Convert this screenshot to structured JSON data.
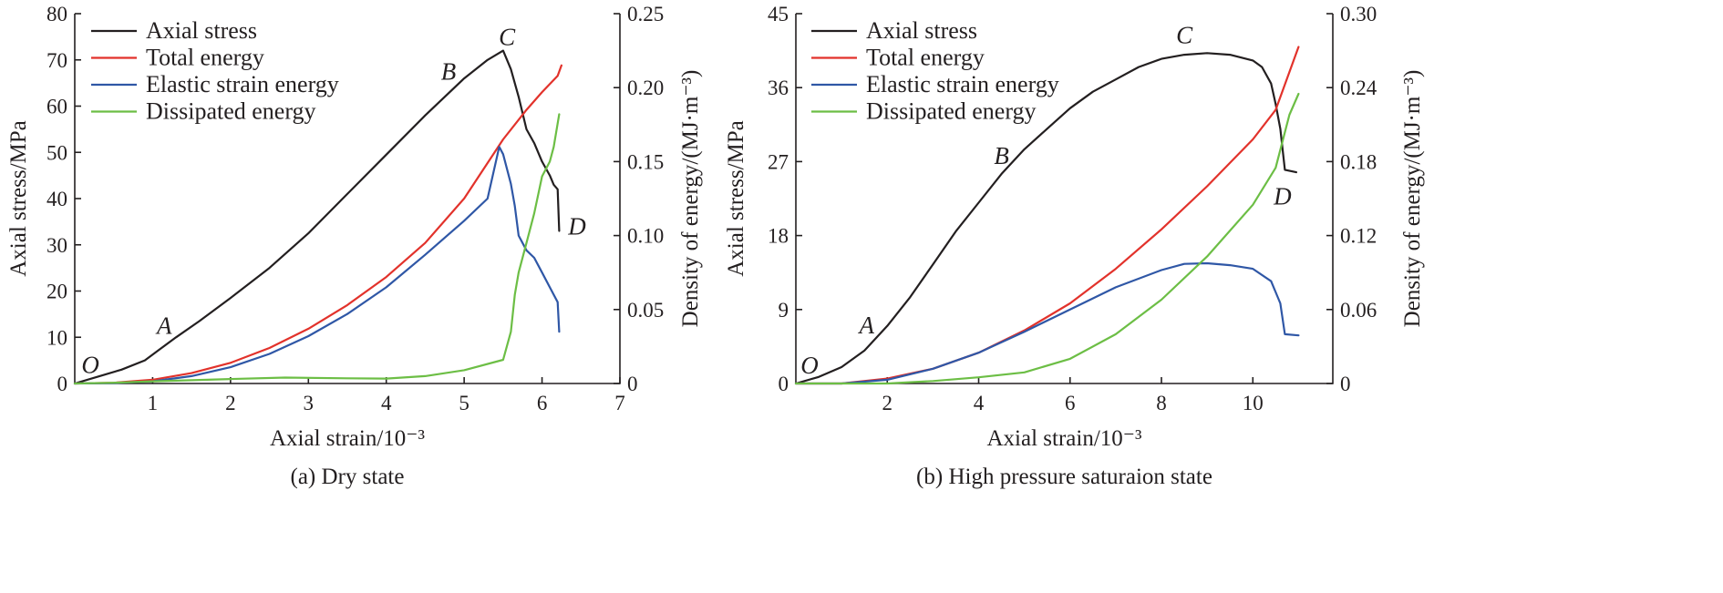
{
  "chart_data": [
    {
      "type": "line",
      "caption": "(a) Dry state",
      "xlabel": "Axial strain/10⁻³",
      "ylabel_left": "Axial stress/MPa",
      "ylabel_right": "Density of energy/(MJ·m⁻³)",
      "xlim": [
        0,
        7
      ],
      "ylim_left": [
        0,
        80
      ],
      "ylim_right": [
        0,
        0.25
      ],
      "xticks": [
        "1",
        "2",
        "3",
        "4",
        "5",
        "6",
        "7"
      ],
      "yticks_left": [
        "0",
        "10",
        "20",
        "30",
        "40",
        "50",
        "60",
        "70",
        "80"
      ],
      "yticks_right": [
        "0",
        "0.05",
        "0.10",
        "0.15",
        "0.20",
        "0.25"
      ],
      "legend": [
        "Axial stress",
        "Total energy",
        "Elastic strain energy",
        "Dissipated energy"
      ],
      "series": [
        {
          "name": "Axial stress",
          "axis": "left",
          "color": "#231f20",
          "points": [
            [
              0,
              0
            ],
            [
              0.3,
              1.5
            ],
            [
              0.6,
              3
            ],
            [
              0.9,
              5
            ],
            [
              1.1,
              7.5
            ],
            [
              1.3,
              10
            ],
            [
              1.6,
              13.5
            ],
            [
              2,
              18.5
            ],
            [
              2.5,
              25
            ],
            [
              3,
              32.5
            ],
            [
              3.5,
              41
            ],
            [
              4,
              49.5
            ],
            [
              4.5,
              58
            ],
            [
              5,
              66
            ],
            [
              5.3,
              70
            ],
            [
              5.5,
              72
            ],
            [
              5.6,
              68
            ],
            [
              5.7,
              62
            ],
            [
              5.8,
              55
            ],
            [
              5.9,
              52
            ],
            [
              6,
              48
            ],
            [
              6.1,
              45
            ],
            [
              6.15,
              43
            ],
            [
              6.2,
              42
            ],
            [
              6.22,
              33
            ]
          ]
        },
        {
          "name": "Total energy",
          "axis": "right",
          "color": "#e2322b",
          "points": [
            [
              0,
              0
            ],
            [
              0.5,
              0.0005
            ],
            [
              1,
              0.0025
            ],
            [
              1.5,
              0.007
            ],
            [
              2,
              0.014
            ],
            [
              2.5,
              0.024
            ],
            [
              3,
              0.037
            ],
            [
              3.5,
              0.053
            ],
            [
              4,
              0.072
            ],
            [
              4.5,
              0.095
            ],
            [
              5,
              0.125
            ],
            [
              5.5,
              0.165
            ],
            [
              5.8,
              0.185
            ],
            [
              6,
              0.197
            ],
            [
              6.2,
              0.208
            ],
            [
              6.25,
              0.215
            ]
          ]
        },
        {
          "name": "Elastic strain energy",
          "axis": "right",
          "color": "#2f57a6",
          "points": [
            [
              0,
              0
            ],
            [
              0.5,
              0.0003
            ],
            [
              1,
              0.0015
            ],
            [
              1.5,
              0.005
            ],
            [
              2,
              0.011
            ],
            [
              2.5,
              0.02
            ],
            [
              3,
              0.032
            ],
            [
              3.5,
              0.047
            ],
            [
              4,
              0.065
            ],
            [
              4.5,
              0.087
            ],
            [
              5,
              0.11
            ],
            [
              5.3,
              0.125
            ],
            [
              5.45,
              0.16
            ],
            [
              5.5,
              0.155
            ],
            [
              5.6,
              0.135
            ],
            [
              5.65,
              0.12
            ],
            [
              5.7,
              0.1
            ],
            [
              5.8,
              0.09
            ],
            [
              5.9,
              0.085
            ],
            [
              6,
              0.075
            ],
            [
              6.1,
              0.065
            ],
            [
              6.2,
              0.055
            ],
            [
              6.22,
              0.035
            ]
          ]
        },
        {
          "name": "Dissipated energy",
          "axis": "right",
          "color": "#6cbe45",
          "points": [
            [
              0,
              0
            ],
            [
              0.5,
              0.0005
            ],
            [
              1,
              0.0015
            ],
            [
              2,
              0.003
            ],
            [
              2.7,
              0.004
            ],
            [
              3.5,
              0.0035
            ],
            [
              4,
              0.0033
            ],
            [
              4.5,
              0.005
            ],
            [
              5,
              0.009
            ],
            [
              5.5,
              0.016
            ],
            [
              5.6,
              0.035
            ],
            [
              5.65,
              0.06
            ],
            [
              5.7,
              0.075
            ],
            [
              5.8,
              0.095
            ],
            [
              5.9,
              0.115
            ],
            [
              6,
              0.14
            ],
            [
              6.1,
              0.15
            ],
            [
              6.15,
              0.16
            ],
            [
              6.22,
              0.182
            ]
          ]
        }
      ],
      "annotations": [
        {
          "text": "O",
          "x": 0.2,
          "y": 4
        },
        {
          "text": "A",
          "x": 1.15,
          "y": 12.5
        },
        {
          "text": "B",
          "x": 4.8,
          "y": 67.5
        },
        {
          "text": "C",
          "x": 5.55,
          "y": 75
        },
        {
          "text": "D",
          "x": 6.45,
          "y": 34
        }
      ]
    },
    {
      "type": "line",
      "caption": "(b) High pressure saturaion state",
      "xlabel": "Axial strain/10⁻³",
      "ylabel_left": "Axial stress/MPa",
      "ylabel_right": "Density of energy/(MJ·m⁻³)",
      "xlim": [
        0,
        11.75
      ],
      "ylim_left": [
        0,
        45
      ],
      "ylim_right": [
        0,
        0.3
      ],
      "xticks": [
        "2",
        "4",
        "6",
        "8",
        "10"
      ],
      "yticks_left": [
        "0",
        "9",
        "18",
        "27",
        "36",
        "45"
      ],
      "yticks_right": [
        "0",
        "0.06",
        "0.12",
        "0.18",
        "0.24",
        "0.30"
      ],
      "legend": [
        "Axial stress",
        "Total energy",
        "Elastic strain energy",
        "Dissipated energy"
      ],
      "series": [
        {
          "name": "Axial stress",
          "axis": "left",
          "color": "#231f20",
          "points": [
            [
              0,
              0
            ],
            [
              0.5,
              0.8
            ],
            [
              1,
              2
            ],
            [
              1.5,
              4
            ],
            [
              2,
              7
            ],
            [
              2.5,
              10.5
            ],
            [
              3,
              14.5
            ],
            [
              3.5,
              18.5
            ],
            [
              4,
              22
            ],
            [
              4.5,
              25.5
            ],
            [
              5,
              28.5
            ],
            [
              5.5,
              31
            ],
            [
              6,
              33.5
            ],
            [
              6.5,
              35.5
            ],
            [
              7,
              37
            ],
            [
              7.5,
              38.5
            ],
            [
              8,
              39.5
            ],
            [
              8.5,
              40
            ],
            [
              9,
              40.2
            ],
            [
              9.5,
              40
            ],
            [
              10,
              39.3
            ],
            [
              10.2,
              38.5
            ],
            [
              10.4,
              36.5
            ],
            [
              10.5,
              34
            ],
            [
              10.6,
              31
            ],
            [
              10.7,
              26
            ],
            [
              10.95,
              25.7
            ]
          ]
        },
        {
          "name": "Total energy",
          "axis": "right",
          "color": "#e2322b",
          "points": [
            [
              0,
              0
            ],
            [
              1,
              0
            ],
            [
              2,
              0.004
            ],
            [
              3,
              0.012
            ],
            [
              4,
              0.025
            ],
            [
              5,
              0.043
            ],
            [
              6,
              0.065
            ],
            [
              7,
              0.093
            ],
            [
              8,
              0.125
            ],
            [
              9,
              0.16
            ],
            [
              10,
              0.198
            ],
            [
              10.5,
              0.222
            ],
            [
              11,
              0.273
            ]
          ]
        },
        {
          "name": "Elastic strain energy",
          "axis": "right",
          "color": "#2f57a6",
          "points": [
            [
              0,
              0
            ],
            [
              1,
              0
            ],
            [
              2,
              0.003
            ],
            [
              3,
              0.012
            ],
            [
              4,
              0.025
            ],
            [
              5,
              0.042
            ],
            [
              6,
              0.06
            ],
            [
              7,
              0.078
            ],
            [
              8,
              0.092
            ],
            [
              8.5,
              0.097
            ],
            [
              9,
              0.0975
            ],
            [
              9.5,
              0.096
            ],
            [
              10,
              0.093
            ],
            [
              10.4,
              0.083
            ],
            [
              10.6,
              0.065
            ],
            [
              10.7,
              0.04
            ],
            [
              11,
              0.039
            ]
          ]
        },
        {
          "name": "Dissipated energy",
          "axis": "right",
          "color": "#6cbe45",
          "points": [
            [
              0,
              0
            ],
            [
              1,
              0
            ],
            [
              2,
              0
            ],
            [
              3,
              0.002
            ],
            [
              4,
              0.005
            ],
            [
              5,
              0.009
            ],
            [
              6,
              0.02
            ],
            [
              7,
              0.04
            ],
            [
              8,
              0.068
            ],
            [
              9,
              0.103
            ],
            [
              10,
              0.145
            ],
            [
              10.5,
              0.175
            ],
            [
              10.8,
              0.218
            ],
            [
              11,
              0.235
            ]
          ]
        }
      ],
      "annotations": [
        {
          "text": "O",
          "x": 0.3,
          "y": 2.2
        },
        {
          "text": "A",
          "x": 1.55,
          "y": 7.1
        },
        {
          "text": "B",
          "x": 4.5,
          "y": 27.7
        },
        {
          "text": "C",
          "x": 8.5,
          "y": 42.4
        },
        {
          "text": "D",
          "x": 10.65,
          "y": 22.8
        }
      ]
    }
  ]
}
